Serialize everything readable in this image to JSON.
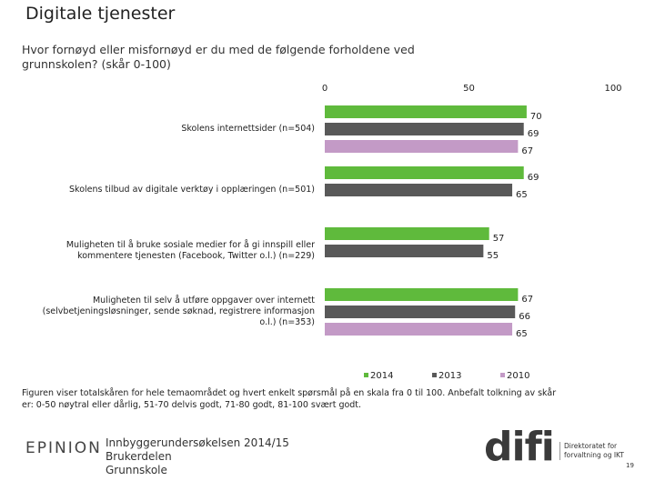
{
  "slide_title": "Digitale tjenester",
  "chart_data": {
    "type": "bar",
    "orientation": "horizontal",
    "title": "Hvor fornøyd eller misfornøyd er du med de følgende forholdene ved\ngrunnskolen? (skår 0-100)",
    "categories": [
      "Skolens internettsider (n=504)",
      "Skolens tilbud av digitale verktøy i opplæringen (n=501)",
      "Muligheten til å bruke sosiale medier for å gi innspill eller\nkommentere tjenesten (Facebook, Twitter o.l.) (n=229)",
      "Muligheten til selv å utføre oppgaver over internett\n(selvbetjeningsløsninger, sende søknad, registrere informasjon\no.l.) (n=353)"
    ],
    "series": [
      {
        "name": "2014",
        "color": "#5fba3c",
        "values": [
          70,
          69,
          57,
          67
        ]
      },
      {
        "name": "2013",
        "color": "#595959",
        "values": [
          69,
          65,
          55,
          66
        ]
      },
      {
        "name": "2010",
        "color": "#c39ac6",
        "values": [
          67,
          null,
          null,
          65
        ]
      }
    ],
    "xlim": [
      0,
      100
    ],
    "xticks": [
      0,
      50,
      100
    ],
    "grid": false,
    "legend": "bottom"
  },
  "footnote": "Figuren viser totalskåren for hele temaområdet og hvert enkelt spørsmål på en skala fra 0 til 100. Anbefalt tolkning av skår\ner: 0-50 nøytral eller dårlig, 51-70 delvis godt, 71-80 godt, 81-100 svært godt.",
  "footer": {
    "logo_left": "EPINION",
    "text": "Innbyggerundersøkelsen 2014/15\nBrukerdelen\nGrunnskole",
    "logo_right": "difi",
    "logo_right_tagline": "Direktoratet for\nforvaltning og IKT",
    "page_number": "19"
  }
}
